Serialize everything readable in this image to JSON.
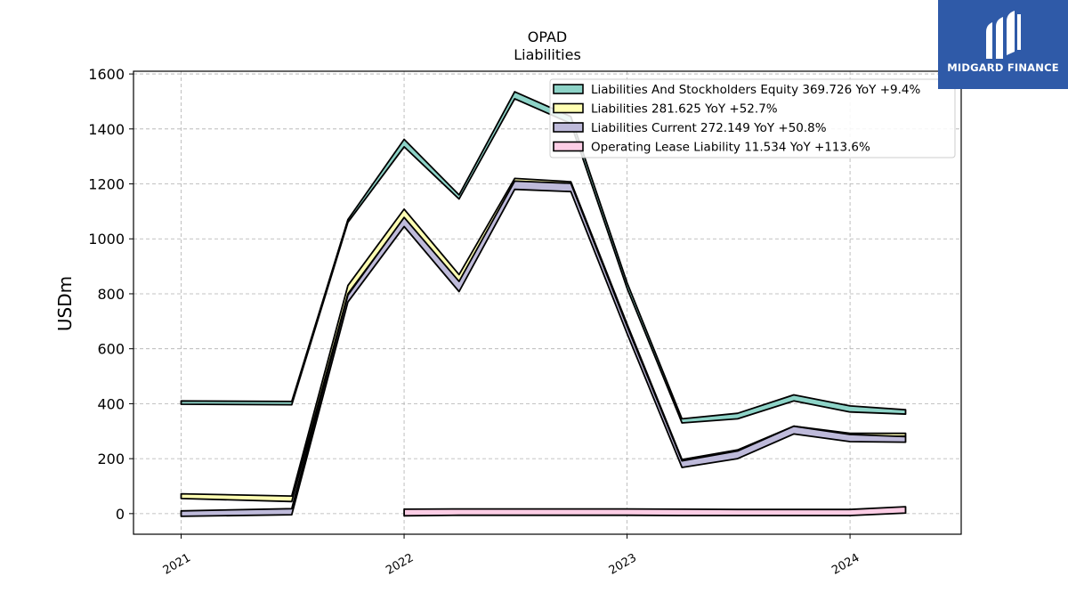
{
  "brand": {
    "name": "MIDGARD FINANCE",
    "color": "#2f5aa8"
  },
  "chart_data": {
    "type": "area",
    "title": "OPAD",
    "subtitle": "Liabilities",
    "ylabel": "USDm",
    "xlabel": "",
    "ylim": [
      -75,
      1610
    ],
    "xlim": [
      "2020-10-15",
      "2024-07-01"
    ],
    "yticks": [
      0,
      200,
      400,
      600,
      800,
      1000,
      1200,
      1400,
      1600
    ],
    "xticks": [
      {
        "date": "2021-01-01",
        "label": "2021"
      },
      {
        "date": "2022-01-01",
        "label": "2022"
      },
      {
        "date": "2023-01-01",
        "label": "2023"
      },
      {
        "date": "2024-01-01",
        "label": "2024"
      }
    ],
    "grid": true,
    "legend_position": "top-right",
    "series": [
      {
        "name": "Liabilities And Stockholders Equity",
        "legend": "Liabilities And Stockholders Equity  369.726 YoY +9.4%",
        "color": "#8dd3c7",
        "points": [
          [
            "2021-01-01",
            410,
            398
          ],
          [
            "2021-07-01",
            408,
            396
          ],
          [
            "2021-10-01",
            1070,
            1060
          ],
          [
            "2022-01-01",
            1362,
            1335
          ],
          [
            "2022-04-01",
            1160,
            1145
          ],
          [
            "2022-07-01",
            1535,
            1510
          ],
          [
            "2022-10-01",
            1445,
            1420
          ],
          [
            "2023-01-01",
            840,
            820
          ],
          [
            "2023-04-01",
            345,
            330
          ],
          [
            "2023-07-01",
            365,
            345
          ],
          [
            "2023-10-01",
            432,
            410
          ],
          [
            "2024-01-01",
            392,
            370
          ],
          [
            "2024-04-01",
            378,
            362
          ]
        ]
      },
      {
        "name": "Liabilities",
        "legend": "Liabilities  281.625 YoY +52.7%",
        "color": "#ffffb3",
        "points": [
          [
            "2021-01-01",
            72,
            55
          ],
          [
            "2021-07-01",
            64,
            44
          ],
          [
            "2021-10-01",
            830,
            800
          ],
          [
            "2022-01-01",
            1108,
            1075
          ],
          [
            "2022-04-01",
            870,
            830
          ],
          [
            "2022-07-01",
            1220,
            1195
          ],
          [
            "2022-10-01",
            1208,
            1190
          ],
          [
            "2023-01-01",
            690,
            665
          ],
          [
            "2023-04-01",
            197,
            182
          ],
          [
            "2023-07-01",
            232,
            214
          ],
          [
            "2023-10-01",
            318,
            298
          ],
          [
            "2024-01-01",
            292,
            276
          ],
          [
            "2024-04-01",
            292,
            282
          ]
        ]
      },
      {
        "name": "Liabilities Current",
        "legend": "Liabilities Current  272.149 YoY +50.8%",
        "color": "#bebada",
        "points": [
          [
            "2021-01-01",
            10,
            -10
          ],
          [
            "2021-07-01",
            18,
            -4
          ],
          [
            "2021-10-01",
            795,
            770
          ],
          [
            "2022-01-01",
            1078,
            1045
          ],
          [
            "2022-04-01",
            845,
            808
          ],
          [
            "2022-07-01",
            1210,
            1180
          ],
          [
            "2022-10-01",
            1202,
            1172
          ],
          [
            "2023-01-01",
            682,
            655
          ],
          [
            "2023-04-01",
            192,
            168
          ],
          [
            "2023-07-01",
            228,
            200
          ],
          [
            "2023-10-01",
            318,
            290
          ],
          [
            "2024-01-01",
            288,
            262
          ],
          [
            "2024-04-01",
            280,
            260
          ]
        ]
      },
      {
        "name": "Operating Lease Liability",
        "legend": "Operating Lease Liability  11.534 YoY +113.6%",
        "color": "#fccde5",
        "points": [
          [
            "2022-01-01",
            16,
            -8
          ],
          [
            "2022-04-01",
            17,
            -6
          ],
          [
            "2022-07-01",
            17,
            -6
          ],
          [
            "2022-10-01",
            17,
            -6
          ],
          [
            "2023-01-01",
            17,
            -6
          ],
          [
            "2023-04-01",
            16,
            -7
          ],
          [
            "2023-07-01",
            15,
            -7
          ],
          [
            "2023-10-01",
            15,
            -7
          ],
          [
            "2024-01-01",
            15,
            -7
          ],
          [
            "2024-04-01",
            25,
            2
          ]
        ]
      }
    ]
  }
}
